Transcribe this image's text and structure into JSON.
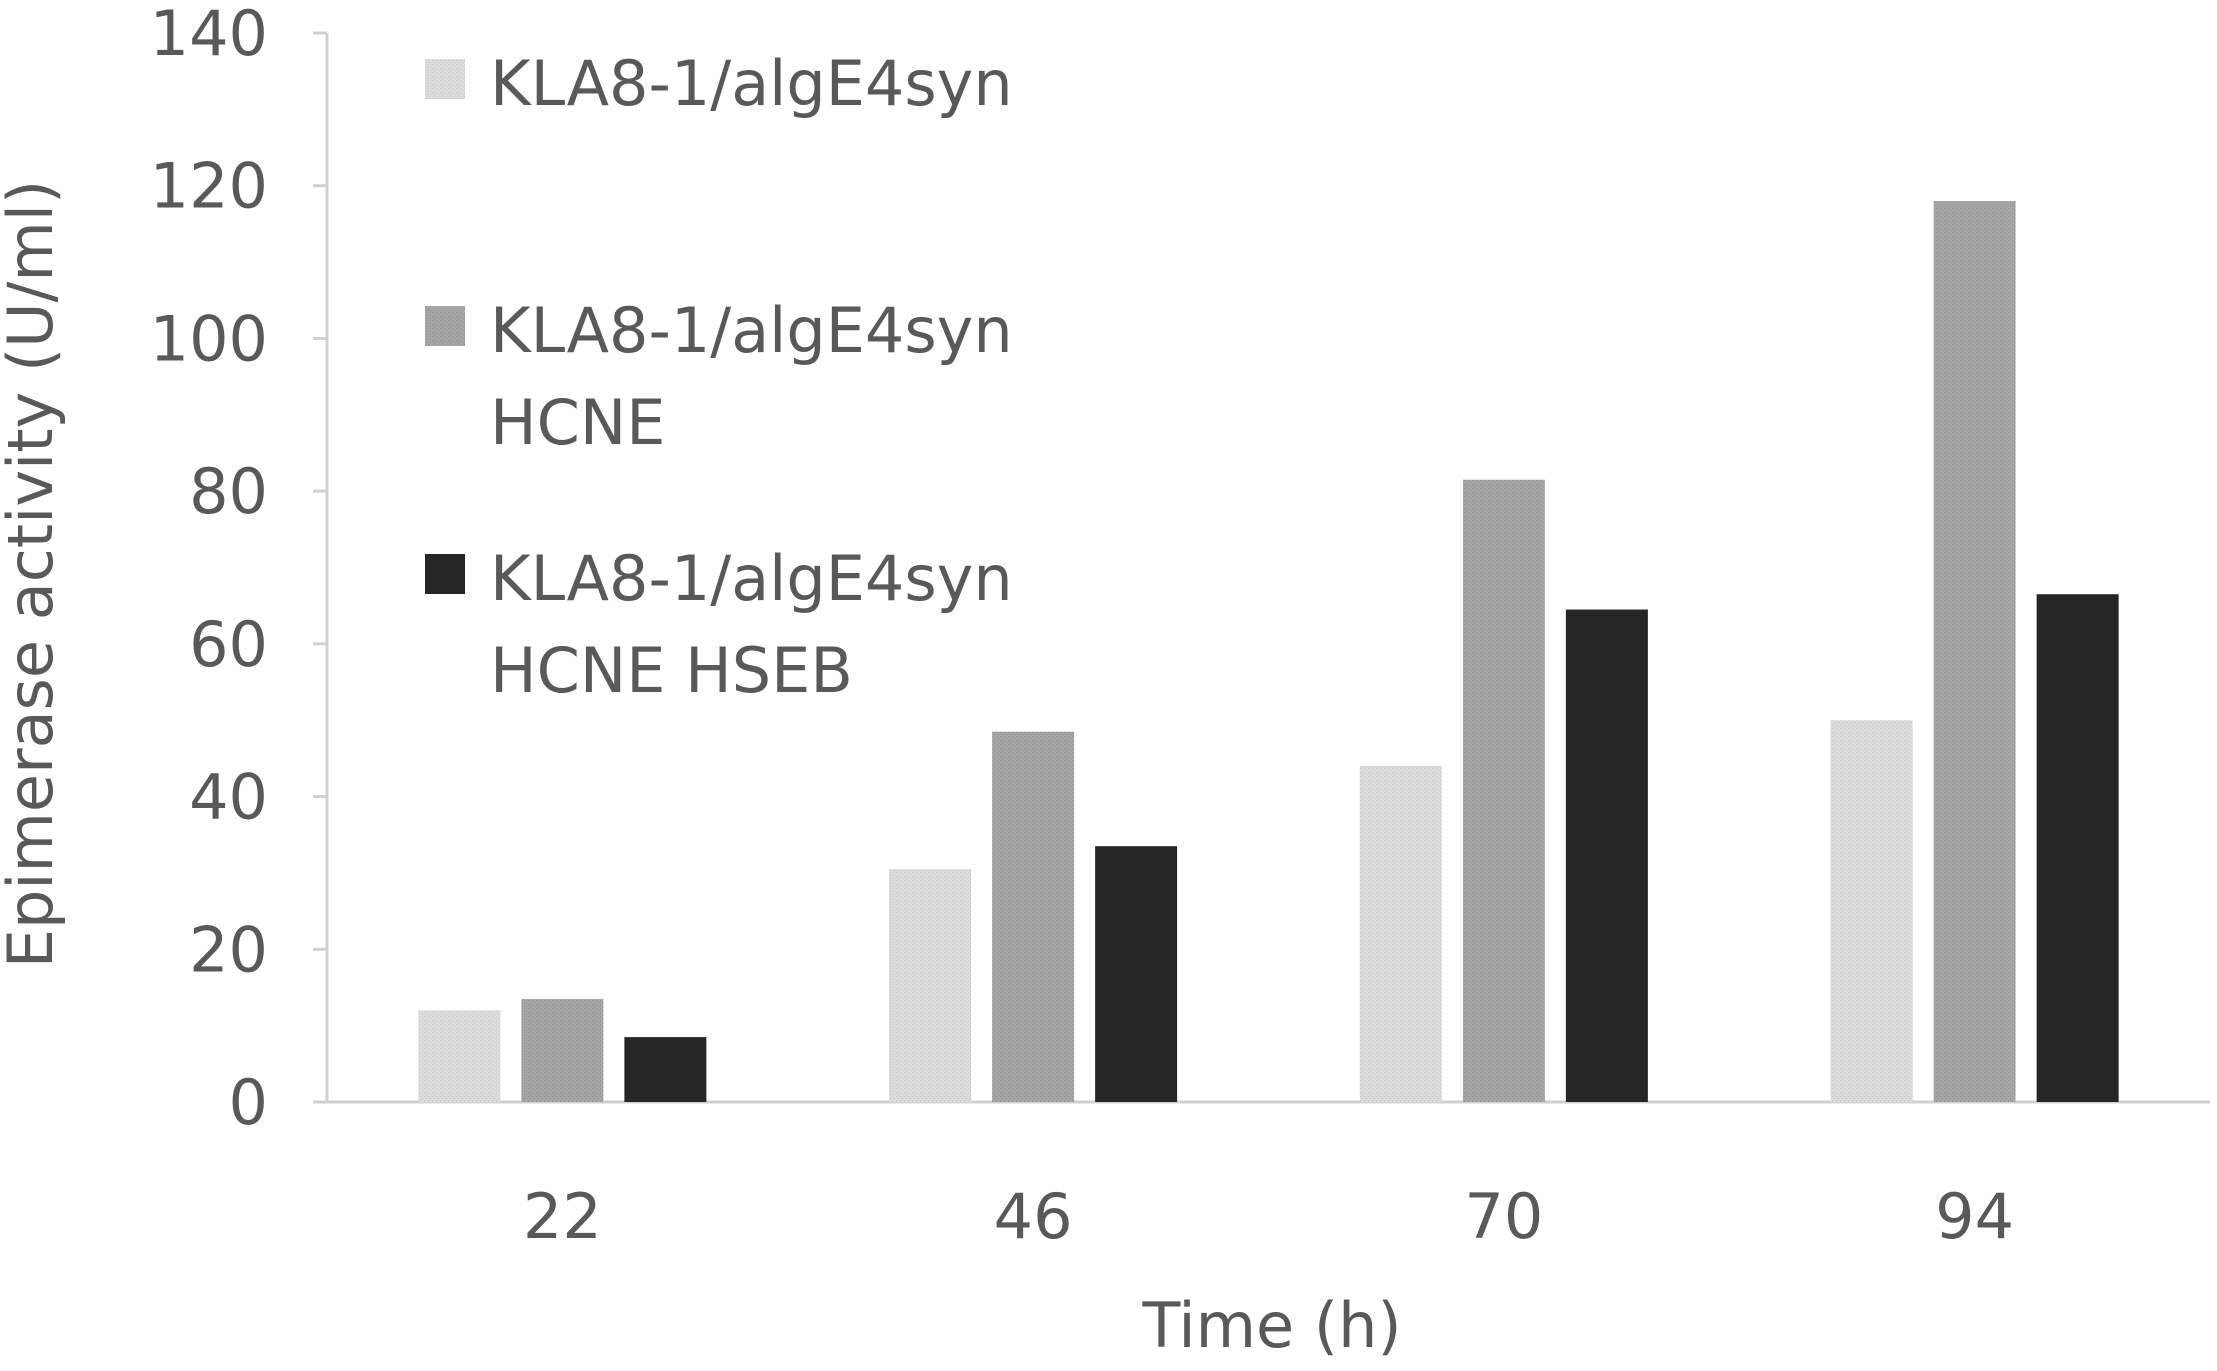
{
  "chart_data": {
    "type": "bar",
    "title": "",
    "xlabel": "Time (h)",
    "ylabel": "Epimerase activity (U/ml)",
    "ylim": [
      0,
      140
    ],
    "yticks": [
      0,
      20,
      40,
      60,
      80,
      100,
      120,
      140
    ],
    "categories": [
      "22",
      "46",
      "70",
      "94"
    ],
    "grid": false,
    "legend_position": "top-left",
    "series": [
      {
        "name": "KLA8-1/algE4syn",
        "name_lines": [
          "KLA8-1/algE4syn"
        ],
        "color": "#dcdcdc",
        "values": [
          12,
          30.5,
          44,
          50
        ]
      },
      {
        "name": "KLA8-1/algE4syn HCNE",
        "name_lines": [
          "KLA8-1/algE4syn",
          "HCNE"
        ],
        "color": "#a6a6a6",
        "values": [
          13.5,
          48.5,
          81.5,
          118
        ]
      },
      {
        "name": "KLA8-1/algE4syn HCNE HSEB",
        "name_lines": [
          "KLA8-1/algE4syn",
          "HCNE HSEB"
        ],
        "color": "#262626",
        "values": [
          8.5,
          33.5,
          64.5,
          66.5
        ]
      }
    ]
  }
}
